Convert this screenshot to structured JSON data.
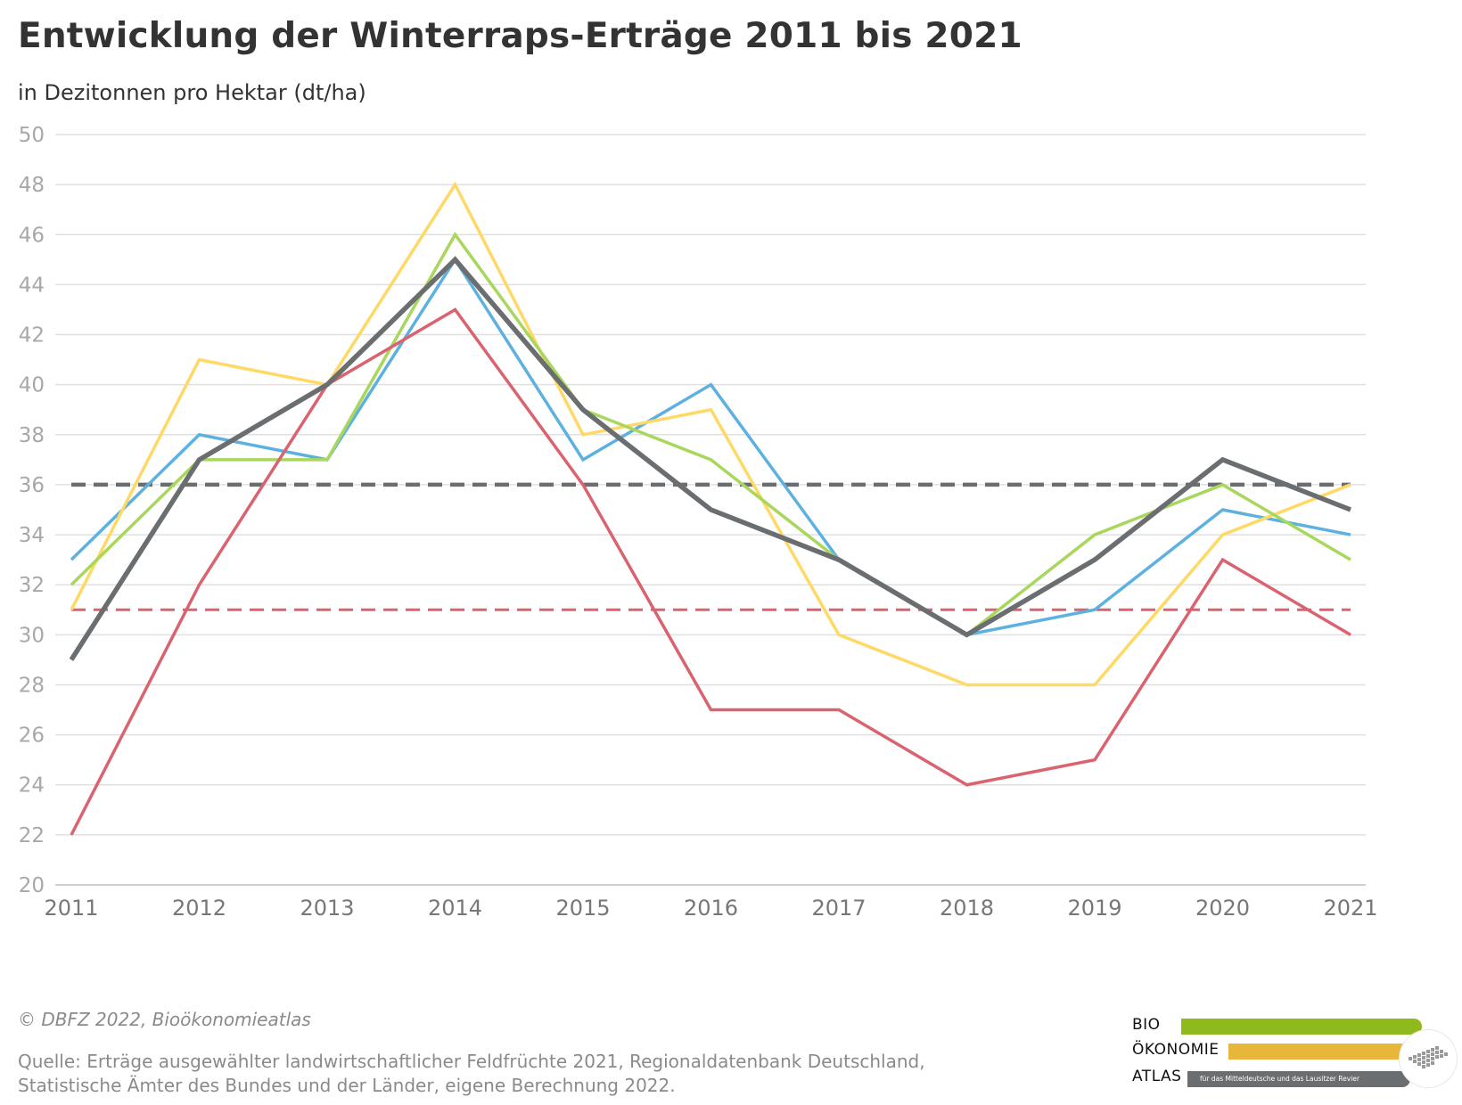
{
  "header": {
    "title": "Entwicklung der Winterraps-Erträge 2011 bis 2021",
    "subtitle": "in Dezitonnen pro Hektar (dt/ha)"
  },
  "footer": {
    "copyright": "© DBFZ 2022, Bioökonomieatlas",
    "source_line1": "Quelle: Erträge ausgewählter landwirtschaftlicher Feldfrüchte 2021, Regionaldatenbank Deutschland,",
    "source_line2": "Statistische Ämter des Bundes und der Länder, eigene Berechnung 2022."
  },
  "logo": {
    "word1": "BIO",
    "word2": "ÖKONOMIE",
    "word3": "ATLAS",
    "tagline": "für das Mitteldeutsche und das Lausitzer Revier",
    "colors": {
      "bio": "#8fba1e",
      "oekonomie": "#e9b63c",
      "atlas": "#6b6e70"
    }
  },
  "chart_data": {
    "type": "line",
    "x": [
      2011,
      2012,
      2013,
      2014,
      2015,
      2016,
      2017,
      2018,
      2019,
      2020,
      2021
    ],
    "ylim": [
      20,
      50
    ],
    "yticks": [
      20,
      22,
      24,
      26,
      28,
      30,
      32,
      34,
      36,
      38,
      40,
      42,
      44,
      46,
      48,
      50
    ],
    "grid": true,
    "series": [
      {
        "color": "#5db1e0",
        "width": 3.5,
        "values": [
          33,
          38,
          37,
          45,
          37,
          40,
          33,
          30,
          31,
          35,
          34
        ]
      },
      {
        "color": "#ffd966",
        "width": 3.5,
        "values": [
          31,
          41,
          40,
          48,
          38,
          39,
          30,
          28,
          28,
          34,
          36
        ]
      },
      {
        "color": "#a9d65c",
        "width": 3.5,
        "values": [
          32,
          37,
          37,
          46,
          39,
          37,
          33,
          30,
          34,
          36,
          33
        ]
      },
      {
        "color": "#d9636e",
        "width": 3.5,
        "values": [
          22,
          32,
          40,
          43,
          36,
          27,
          27,
          24,
          25,
          33,
          30
        ]
      },
      {
        "color": "#6b6e70",
        "width": 5.5,
        "values": [
          29,
          37,
          40,
          45,
          39,
          35,
          33,
          30,
          33,
          37,
          35
        ]
      }
    ],
    "reference_lines": [
      {
        "color": "#5db1e0",
        "value": 36,
        "width": 3
      },
      {
        "color": "#d9636e",
        "value": 31,
        "width": 3
      },
      {
        "color": "#6b6e70",
        "value": 36,
        "width": 4.5
      }
    ]
  }
}
